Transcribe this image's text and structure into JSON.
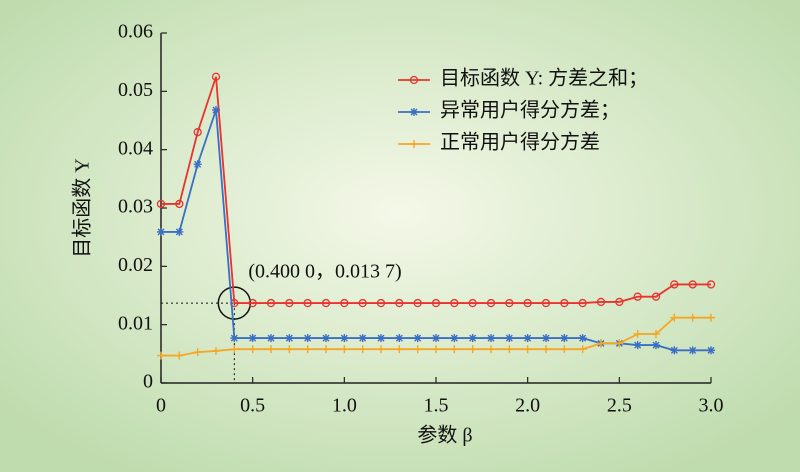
{
  "chart_data": {
    "type": "line",
    "xlabel": "参数 β",
    "ylabel": "目标函数 Y",
    "x": [
      0,
      0.1,
      0.2,
      0.3,
      0.4,
      0.5,
      0.6,
      0.7,
      0.8,
      0.9,
      1.0,
      1.1,
      1.2,
      1.3,
      1.4,
      1.5,
      1.6,
      1.7,
      1.8,
      1.9,
      2.0,
      2.1,
      2.2,
      2.3,
      2.4,
      2.5,
      2.6,
      2.7,
      2.8,
      2.9,
      3.0
    ],
    "series": [
      {
        "name": "目标函数 Y: 方差之和；",
        "color": "#e8332e",
        "marker": "circle",
        "values": [
          0.0307,
          0.0307,
          0.043,
          0.0525,
          0.0137,
          0.0137,
          0.0137,
          0.0137,
          0.0137,
          0.0137,
          0.0137,
          0.0137,
          0.0137,
          0.0137,
          0.0137,
          0.0137,
          0.0137,
          0.0137,
          0.0137,
          0.0137,
          0.0137,
          0.0137,
          0.0137,
          0.0137,
          0.0139,
          0.0139,
          0.0148,
          0.0148,
          0.0169,
          0.0169,
          0.0169
        ]
      },
      {
        "name": "异常用户得分方差；",
        "color": "#3a6fc4",
        "marker": "asterisk",
        "values": [
          0.0259,
          0.0259,
          0.0375,
          0.0468,
          0.0077,
          0.0077,
          0.0077,
          0.0077,
          0.0077,
          0.0077,
          0.0077,
          0.0077,
          0.0077,
          0.0077,
          0.0077,
          0.0077,
          0.0077,
          0.0077,
          0.0077,
          0.0077,
          0.0077,
          0.0077,
          0.0077,
          0.0077,
          0.0068,
          0.0068,
          0.0065,
          0.0065,
          0.0056,
          0.0056,
          0.0056
        ]
      },
      {
        "name": "正常用户得分方差",
        "color": "#f5a623",
        "marker": "plus",
        "values": [
          0.0047,
          0.0047,
          0.0053,
          0.0055,
          0.0058,
          0.0058,
          0.0058,
          0.0058,
          0.0058,
          0.0058,
          0.0058,
          0.0058,
          0.0058,
          0.0058,
          0.0058,
          0.0058,
          0.0058,
          0.0058,
          0.0058,
          0.0058,
          0.0058,
          0.0058,
          0.0058,
          0.0058,
          0.0068,
          0.0068,
          0.0084,
          0.0084,
          0.0112,
          0.0112,
          0.0112
        ]
      }
    ],
    "xlim": [
      0,
      3
    ],
    "xticks": [
      0,
      0.5,
      {
        "value": 1,
        "label": "1.0"
      },
      1.5,
      {
        "value": 2,
        "label": "2.0"
      },
      2.5,
      {
        "value": 3,
        "label": "3.0"
      }
    ],
    "ylim": [
      0,
      0.06
    ],
    "yticks": [
      0,
      0.01,
      0.02,
      0.03,
      0.04,
      0.05,
      0.06
    ],
    "legend": "upper right",
    "annotation": {
      "text": "(0.400 0，0.013 7)",
      "x": 0.4,
      "y": 0.0137
    }
  }
}
